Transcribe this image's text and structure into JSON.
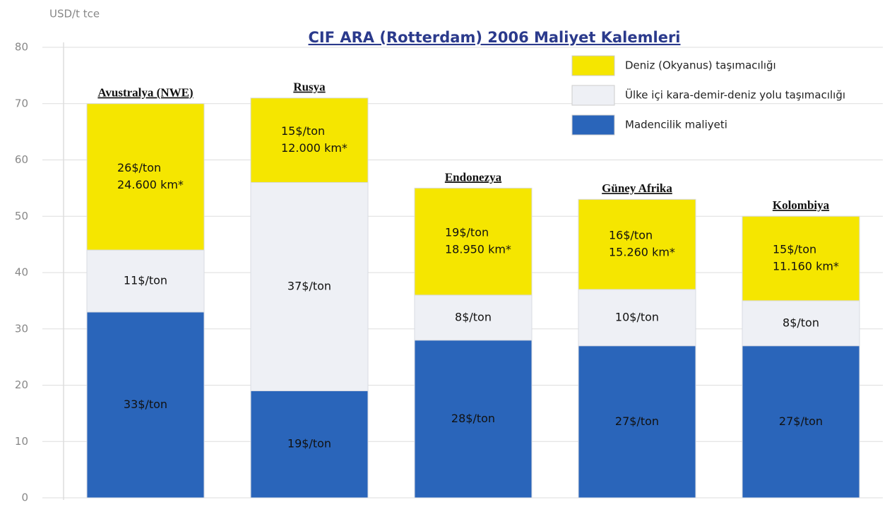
{
  "chart_data": {
    "type": "stacked_bar",
    "title": "CIF ARA (Rotterdam) 2006  Maliyet Kalemleri",
    "y_axis_label": "USD/t tce",
    "categories": [
      "Avustralya (NWE)",
      "Rusya",
      "Endonezya",
      "Güney Afrika",
      "Kolombiya"
    ],
    "series": [
      {
        "name": "Madencilik maliyeti",
        "color": "#2a65ba",
        "values": [
          33,
          19,
          28,
          27,
          27
        ],
        "value_labels": [
          "33$/ton",
          "19$/ton",
          "28$/ton",
          "27$/ton",
          "27$/ton"
        ]
      },
      {
        "name": "Ülke içi kara-demir-deniz yolu taşımacılığı",
        "color": "#eef0f5",
        "values": [
          11,
          37,
          8,
          10,
          8
        ],
        "value_labels": [
          "11$/ton",
          "37$/ton",
          "8$/ton",
          "10$/ton",
          "8$/ton"
        ]
      },
      {
        "name": "Deniz (Okyanus) taşımacılığı",
        "color": "#f5e600",
        "values": [
          26,
          15,
          19,
          16,
          15
        ],
        "value_labels": [
          "26$/ton",
          "15$/ton",
          "19$/ton",
          "16$/ton",
          "15$/ton"
        ],
        "distance_labels": [
          "24.600 km*",
          "12.000 km*",
          "18.950 km*",
          "15.260 km*",
          "11.160 km*"
        ]
      }
    ],
    "ylim": [
      0,
      80
    ],
    "yticks": [
      0,
      10,
      20,
      30,
      40,
      50,
      60,
      70,
      80
    ],
    "grid": true,
    "legend": "top-right"
  }
}
